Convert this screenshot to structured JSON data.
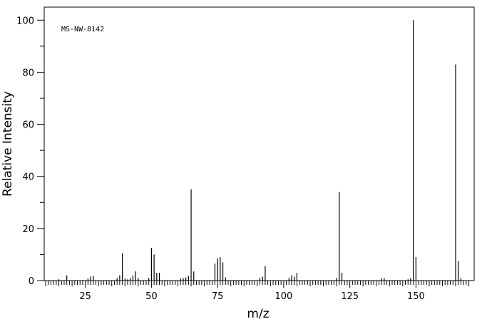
{
  "chart_data": {
    "type": "bar",
    "annotation": "MS-NW-8142",
    "xlabel": "m/z",
    "ylabel": "Relative Intensity",
    "xlim": [
      10,
      172
    ],
    "ylim": [
      0,
      105
    ],
    "x_ticks": [
      25,
      50,
      75,
      100,
      125,
      150
    ],
    "y_ticks": [
      0,
      20,
      40,
      60,
      80,
      100
    ],
    "grid": false,
    "series": [
      {
        "x": [
          15,
          18,
          26,
          27,
          28,
          37,
          38,
          39,
          40,
          41,
          42,
          43,
          44,
          45,
          49,
          50,
          51,
          52,
          53,
          61,
          62,
          63,
          64,
          65,
          66,
          74,
          75,
          76,
          77,
          78,
          91,
          92,
          93,
          102,
          103,
          104,
          105,
          120,
          121,
          122,
          137,
          138,
          147,
          148,
          149,
          150,
          165,
          166,
          167
        ],
        "values": [
          0.5,
          2.0,
          0.8,
          1.5,
          1.8,
          1.0,
          2.0,
          10.5,
          0.8,
          0.5,
          1.0,
          2.0,
          3.5,
          1.0,
          1.0,
          12.5,
          10.0,
          3.0,
          3.0,
          0.8,
          1.0,
          1.2,
          1.8,
          35.0,
          3.5,
          6.5,
          8.5,
          9.0,
          7.0,
          1.2,
          1.0,
          1.5,
          5.5,
          1.0,
          2.0,
          1.5,
          3.0,
          1.0,
          34.0,
          3.0,
          0.8,
          1.0,
          0.5,
          1.0,
          100.0,
          9.0,
          83.0,
          7.5,
          1.0
        ]
      }
    ]
  }
}
